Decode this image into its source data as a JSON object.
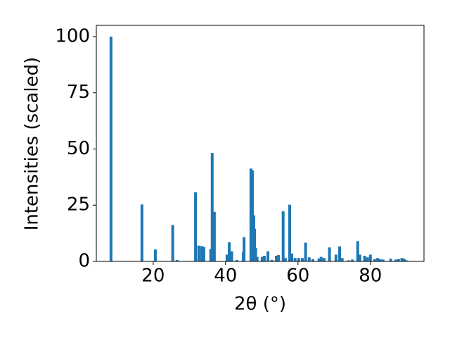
{
  "chart_data": {
    "type": "bar",
    "xlabel": "2θ (°)",
    "ylabel": "Intensities (scaled)",
    "color": "#1f77b4",
    "x": [
      8.35,
      16.9,
      20.6,
      25.4,
      26.6,
      31.7,
      32.6,
      33.4,
      34.0,
      35.9,
      36.3,
      36.9,
      40.4,
      41.0,
      41.7,
      43.1,
      44.9,
      45.1,
      47.0,
      47.4,
      47.8,
      48.0,
      48.3,
      48.7,
      50.1,
      50.7,
      51.7,
      52.8,
      54.0,
      54.6,
      55.9,
      56.5,
      57.7,
      58.3,
      59.2,
      60.2,
      61.2,
      62.1,
      63.1,
      64.1,
      65.8,
      66.4,
      67.2,
      68.7,
      70.5,
      71.5,
      72.2,
      74.0,
      75.0,
      76.5,
      77.1,
      78.4,
      79.2,
      80.0,
      81.2,
      82.0,
      82.7,
      83.5,
      85.6,
      87.0,
      87.8,
      88.7,
      89.3,
      89.9
    ],
    "values": [
      100,
      25.3,
      5.3,
      16.2,
      0.6,
      30.7,
      7,
      6.8,
      6.5,
      5.5,
      48.2,
      22,
      3,
      8.5,
      4.5,
      0.6,
      4,
      10.8,
      41.3,
      40.5,
      20.5,
      14.5,
      6,
      2,
      2,
      2.5,
      4.5,
      0.7,
      2.5,
      2.8,
      22.3,
      1.5,
      25.2,
      3.5,
      1.5,
      1.5,
      1.5,
      8.3,
      1.8,
      1,
      1.3,
      2,
      1.5,
      6.2,
      3,
      6.7,
      1.5,
      0.5,
      0.8,
      9,
      3,
      2.5,
      1.8,
      3,
      1,
      1.5,
      1,
      0.8,
      1.2,
      0.8,
      1,
      1.5,
      1.2,
      0.5
    ],
    "xlim": [
      4.3,
      94.8
    ],
    "xticks": [
      20,
      40,
      60,
      80
    ],
    "ylim": [
      0,
      105
    ],
    "yticks": [
      0,
      25,
      50,
      75,
      100
    ]
  }
}
